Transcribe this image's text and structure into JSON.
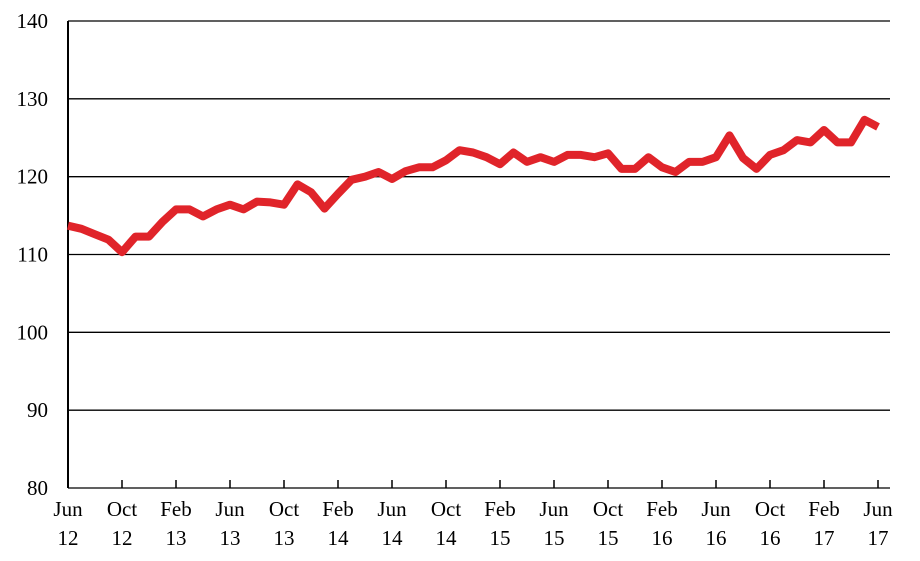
{
  "chart_data": {
    "type": "line",
    "title": "",
    "xlabel": "",
    "ylabel": "",
    "ylim": [
      80,
      140
    ],
    "yticks": [
      80,
      90,
      100,
      110,
      120,
      130,
      140
    ],
    "grid": "horizontal",
    "legend": "none",
    "line_color": "#e0242a",
    "xticks": [
      {
        "month": "Jun",
        "year": "12",
        "index": 0
      },
      {
        "month": "Oct",
        "year": "12",
        "index": 4
      },
      {
        "month": "Feb",
        "year": "13",
        "index": 8
      },
      {
        "month": "Jun",
        "year": "13",
        "index": 12
      },
      {
        "month": "Oct",
        "year": "13",
        "index": 16
      },
      {
        "month": "Feb",
        "year": "14",
        "index": 20
      },
      {
        "month": "Jun",
        "year": "14",
        "index": 24
      },
      {
        "month": "Oct",
        "year": "14",
        "index": 28
      },
      {
        "month": "Feb",
        "year": "15",
        "index": 32
      },
      {
        "month": "Jun",
        "year": "15",
        "index": 36
      },
      {
        "month": "Oct",
        "year": "15",
        "index": 40
      },
      {
        "month": "Feb",
        "year": "16",
        "index": 44
      },
      {
        "month": "Jun",
        "year": "16",
        "index": 48
      },
      {
        "month": "Oct",
        "year": "16",
        "index": 52
      },
      {
        "month": "Feb",
        "year": "17",
        "index": 56
      },
      {
        "month": "Jun",
        "year": "17",
        "index": 60
      }
    ],
    "x": [
      "Jun 12",
      "Jul 12",
      "Aug 12",
      "Sep 12",
      "Oct 12",
      "Nov 12",
      "Dec 12",
      "Jan 13",
      "Feb 13",
      "Mar 13",
      "Apr 13",
      "May 13",
      "Jun 13",
      "Jul 13",
      "Aug 13",
      "Sep 13",
      "Oct 13",
      "Nov 13",
      "Dec 13",
      "Jan 14",
      "Feb 14",
      "Mar 14",
      "Apr 14",
      "May 14",
      "Jun 14",
      "Jul 14",
      "Aug 14",
      "Sep 14",
      "Oct 14",
      "Nov 14",
      "Dec 14",
      "Jan 15",
      "Feb 15",
      "Mar 15",
      "Apr 15",
      "May 15",
      "Jun 15",
      "Jul 15",
      "Aug 15",
      "Sep 15",
      "Oct 15",
      "Nov 15",
      "Dec 15",
      "Jan 16",
      "Feb 16",
      "Mar 16",
      "Apr 16",
      "May 16",
      "Jun 16",
      "Jul 16",
      "Aug 16",
      "Sep 16",
      "Oct 16",
      "Nov 16",
      "Dec 16",
      "Jan 17",
      "Feb 17",
      "Mar 17",
      "Apr 17",
      "May 17",
      "Jun 17"
    ],
    "series": [
      {
        "values": [
          113.7,
          113.3,
          112.6,
          111.9,
          110.3,
          112.3,
          112.3,
          114.2,
          115.8,
          115.8,
          114.9,
          115.8,
          116.4,
          115.8,
          116.8,
          116.7,
          116.4,
          119.0,
          118.0,
          115.9,
          117.8,
          119.6,
          120.0,
          120.6,
          119.7,
          120.7,
          121.2,
          121.2,
          122.1,
          123.4,
          123.1,
          122.5,
          121.6,
          123.1,
          121.9,
          122.5,
          121.9,
          122.8,
          122.8,
          122.5,
          123.0,
          121.0,
          121.0,
          122.5,
          121.2,
          120.6,
          121.9,
          121.9,
          122.5,
          125.3,
          122.4,
          121.0,
          122.8,
          123.4,
          124.7,
          124.4,
          126.0,
          124.4,
          124.4,
          127.3,
          126.4
        ]
      }
    ]
  }
}
